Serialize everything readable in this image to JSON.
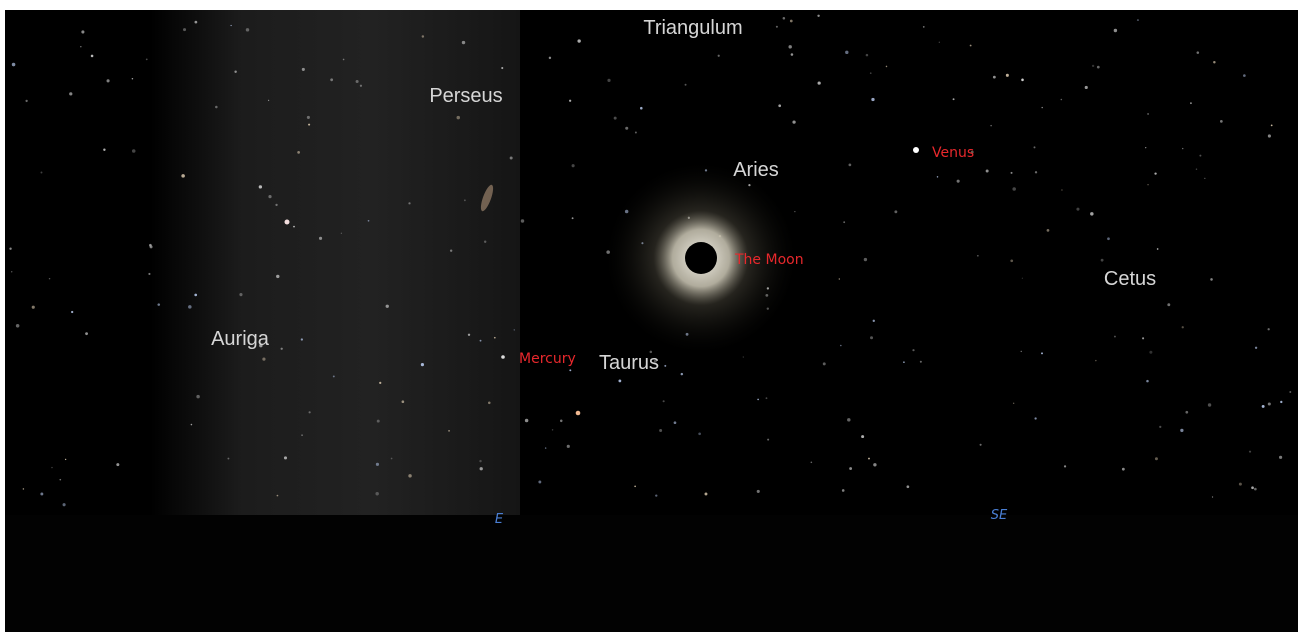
{
  "sky": {
    "constellations": [
      "Triangulum",
      "Perseus",
      "Aries",
      "Cetus",
      "Auriga",
      "Taurus"
    ],
    "objects": [
      "Venus",
      "The Moon",
      "Mercury"
    ],
    "directions": [
      "E",
      "SE"
    ]
  }
}
